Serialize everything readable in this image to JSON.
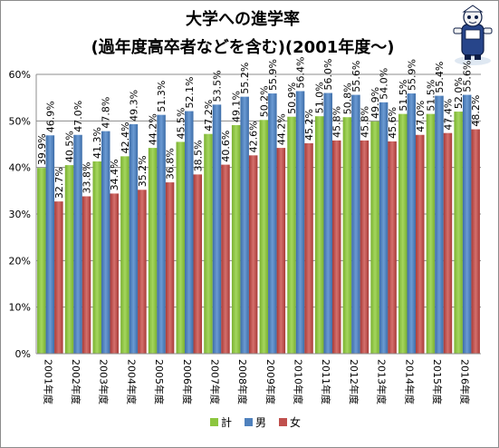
{
  "chart_data": {
    "type": "bar",
    "title_lines": [
      "大学への進学率",
      "(過年度高卒者などを含む)(2001年度〜)"
    ],
    "categories": [
      "2001年度",
      "2002年度",
      "2003年度",
      "2004年度",
      "2005年度",
      "2006年度",
      "2007年度",
      "2008年度",
      "2009年度",
      "2010年度",
      "2011年度",
      "2012年度",
      "2013年度",
      "2014年度",
      "2015年度",
      "2016年度"
    ],
    "series": [
      {
        "name": "計",
        "color": "#8cc63e",
        "values": [
          39.9,
          40.5,
          41.3,
          42.4,
          44.2,
          45.5,
          47.2,
          49.1,
          50.2,
          50.9,
          51.0,
          50.8,
          49.9,
          51.5,
          51.5,
          52.0
        ]
      },
      {
        "name": "男",
        "color": "#4f81bd",
        "values": [
          46.9,
          47.0,
          47.8,
          49.3,
          51.3,
          52.1,
          53.5,
          55.2,
          55.9,
          56.4,
          56.0,
          55.6,
          54.0,
          55.9,
          55.4,
          55.6
        ]
      },
      {
        "name": "女",
        "color": "#c0504d",
        "values": [
          32.7,
          33.8,
          34.4,
          35.2,
          36.8,
          38.5,
          40.6,
          42.6,
          44.2,
          45.2,
          45.8,
          45.8,
          45.6,
          47.0,
          47.4,
          48.2
        ]
      }
    ],
    "y_ticks": [
      "0%",
      "10%",
      "20%",
      "30%",
      "40%",
      "50%",
      "60%"
    ],
    "ylim": [
      0,
      60
    ],
    "y_unit": "%",
    "grid": true,
    "legend_position": "bottom"
  }
}
